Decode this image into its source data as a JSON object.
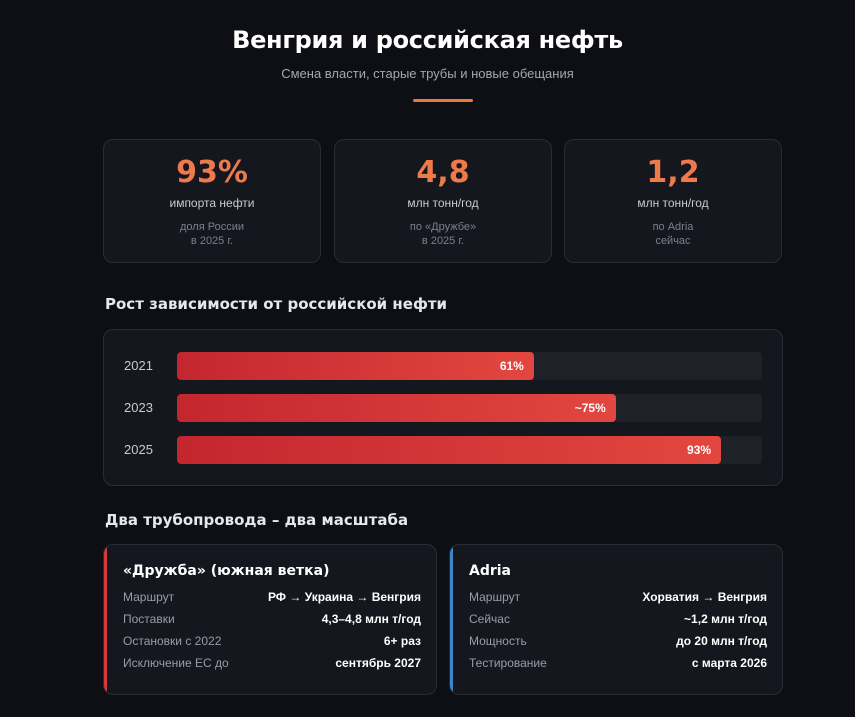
{
  "header": {
    "title": "Венгрия и российская нефть",
    "subtitle": "Смена власти, старые трубы и новые обещания"
  },
  "colors": {
    "accent": "#ee7a4c",
    "bar": "#d6333a",
    "druzhba": "#d9373f",
    "adria": "#3d86c9"
  },
  "stats": [
    {
      "value": "93%",
      "unit": "импорта нефти",
      "note1": "доля России",
      "note2": "в 2025 г."
    },
    {
      "value": "4,8",
      "unit": "млн тонн/год",
      "note1": "по «Дружбе»",
      "note2": "в 2025 г."
    },
    {
      "value": "1,2",
      "unit": "млн тонн/год",
      "note1": "по Adria",
      "note2": "сейчас"
    }
  ],
  "dependency": {
    "title": "Рост зависимости от российской нефти"
  },
  "chart_data": {
    "type": "bar",
    "orientation": "horizontal",
    "categories": [
      "2021",
      "2023",
      "2025"
    ],
    "values": [
      61,
      75,
      93
    ],
    "labels": [
      "61%",
      "~75%",
      "93%"
    ],
    "xlim": [
      0,
      100
    ]
  },
  "pipelines": {
    "title": "Два трубопровода – два масштаба",
    "items": [
      {
        "name": "«Дружба» (южная ветка)",
        "rows": [
          {
            "k": "Маршрут",
            "v": "РФ → Украина → Венгрия"
          },
          {
            "k": "Поставки",
            "v": "4,3–4,8 млн т/год"
          },
          {
            "k": "Остановки с 2022",
            "v": "6+ раз"
          },
          {
            "k": "Исключение ЕС до",
            "v": "сентябрь 2027"
          }
        ]
      },
      {
        "name": "Adria",
        "rows": [
          {
            "k": "Маршрут",
            "v": "Хорватия → Венгрия"
          },
          {
            "k": "Сейчас",
            "v": "~1,2 млн т/год"
          },
          {
            "k": "Мощность",
            "v": "до 20 млн т/год"
          },
          {
            "k": "Тестирование",
            "v": "с марта 2026"
          }
        ]
      }
    ]
  }
}
